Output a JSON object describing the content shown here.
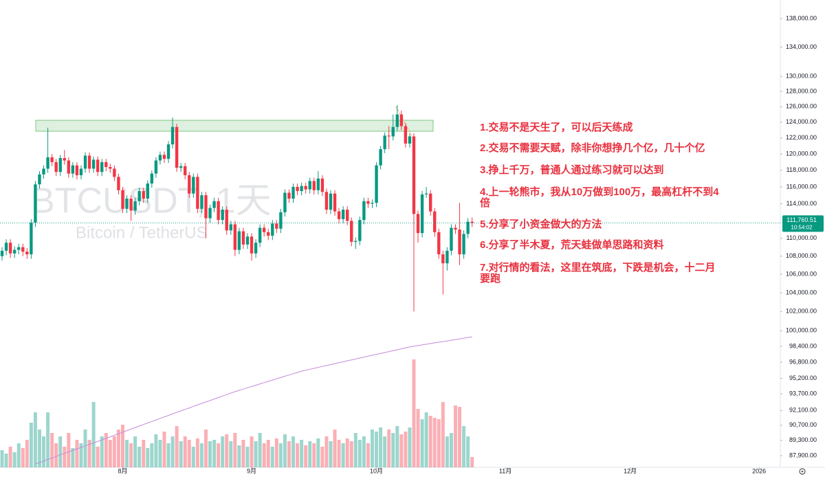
{
  "chart_data": {
    "type": "candlestick",
    "watermark": "BTCUSDT, 1天",
    "watermark_sub": "Bitcoin / TetherUS",
    "log_scale": true,
    "grid": false,
    "up_color": "#089981",
    "down_color": "#f23645",
    "ma_color": "#c58ad9",
    "annotation_color": "#e8313f",
    "last_price_label": "111,760.51",
    "countdown": "10:54:02",
    "xlim": [
      -0.5,
      187.1
    ],
    "xticks": [
      {
        "value": 29,
        "label": "8月"
      },
      {
        "value": 60,
        "label": "9月"
      },
      {
        "value": 90,
        "label": "10月"
      },
      {
        "value": 121,
        "label": "11月"
      },
      {
        "value": 151,
        "label": "12月"
      },
      {
        "value": 182,
        "label": "2026"
      }
    ],
    "ylim": [
      86850,
      140670
    ],
    "yticks": [
      {
        "value": 138000,
        "label": "138,000.00"
      },
      {
        "value": 134000,
        "label": "134,000.00"
      },
      {
        "value": 130000,
        "label": "130,000.00"
      },
      {
        "value": 128000,
        "label": "128,000.00"
      },
      {
        "value": 126000,
        "label": "126,000.00"
      },
      {
        "value": 124000,
        "label": "124,000.00"
      },
      {
        "value": 122000,
        "label": "122,000.00"
      },
      {
        "value": 120000,
        "label": "120,000.00"
      },
      {
        "value": 118000,
        "label": "118,000.00"
      },
      {
        "value": 116000,
        "label": "116,000.00"
      },
      {
        "value": 114000,
        "label": "114,000.00"
      },
      {
        "value": 110000,
        "label": "110,000.00"
      },
      {
        "value": 108000,
        "label": "108,000.00"
      },
      {
        "value": 106000,
        "label": "106,000.00"
      },
      {
        "value": 104000,
        "label": "104,000.00"
      },
      {
        "value": 102000,
        "label": "102,000.00"
      },
      {
        "value": 100000,
        "label": "100,000.00"
      },
      {
        "value": 98400,
        "label": "98,400.00"
      },
      {
        "value": 96800,
        "label": "96,800.00"
      },
      {
        "value": 95200,
        "label": "95,200.00"
      },
      {
        "value": 93700,
        "label": "93,700.00"
      },
      {
        "value": 92100,
        "label": "92,100.00"
      },
      {
        "value": 90700,
        "label": "90,700.00"
      },
      {
        "value": 89300,
        "label": "89,300.00"
      },
      {
        "value": 87900,
        "label": "87,900.00"
      }
    ],
    "annotations": [
      [
        "1.交易不是天生了，可以后天练成"
      ],
      [
        "2.交易不需要天赋，除非你想挣几个亿，几十个亿"
      ],
      [
        "3.挣上千万，普通人通过练习就可以达到"
      ],
      [
        "4.上一轮熊市，我从10万做到100万，最高杠杆不到4",
        "倍"
      ],
      [
        "5.分享了小资金做大的方法"
      ],
      [
        "6.分享了半木夏，荒天蛙做单思路和资料"
      ],
      [
        "7.对行情的看法，这里在筑底，下跌是机会，十二月",
        "要跑"
      ]
    ],
    "open": [
      108000,
      108600,
      109500,
      108300,
      108700,
      109000,
      108500,
      108200,
      111800,
      116300,
      117500,
      118200,
      119600,
      119000,
      117800,
      119500,
      119200,
      117600,
      118600,
      117400,
      118200,
      119800,
      118200,
      119300,
      117800,
      119000,
      118400,
      118200,
      117200,
      115600,
      113400,
      114600,
      113200,
      114300,
      115500,
      114600,
      116400,
      117600,
      119200,
      119900,
      119400,
      121200,
      123400,
      118300,
      118500,
      117400,
      115200,
      117200,
      113400,
      115000,
      112300,
      113500,
      114300,
      112100,
      113300,
      110900,
      111600,
      108700,
      110800,
      109300,
      110200,
      108300,
      109500,
      111200,
      110700,
      110300,
      111700,
      111100,
      113000,
      115300,
      114600,
      116000,
      115500,
      116100,
      115700,
      116700,
      115600,
      117000,
      115400,
      113300,
      115200,
      113100,
      112200,
      113300,
      112000,
      109600,
      109700,
      112100,
      114300,
      114000,
      114100,
      118600,
      120600,
      122300,
      122200,
      123400,
      125000,
      123500,
      121300,
      122200,
      112800,
      110600,
      115100,
      115200,
      113100,
      110700,
      108200,
      107200,
      108600,
      111200,
      111000,
      108200,
      110500,
      111900
    ],
    "high": [
      109000,
      109900,
      109900,
      109100,
      109400,
      109400,
      108900,
      112200,
      116700,
      117900,
      118600,
      123300,
      120000,
      119400,
      119900,
      120500,
      119600,
      119000,
      119000,
      118600,
      120200,
      120200,
      119700,
      119700,
      119400,
      119400,
      118800,
      118600,
      117600,
      116000,
      115000,
      115000,
      114700,
      115900,
      115900,
      116800,
      118000,
      119600,
      120300,
      120300,
      121600,
      124600,
      123800,
      118900,
      118900,
      117800,
      117600,
      117600,
      115400,
      115400,
      113900,
      114700,
      114700,
      113700,
      113700,
      112000,
      112000,
      111200,
      111200,
      110600,
      110600,
      109900,
      111600,
      111600,
      111100,
      112100,
      112100,
      113400,
      115700,
      115700,
      116400,
      116400,
      116500,
      116500,
      117100,
      117100,
      117900,
      117400,
      115800,
      115600,
      115600,
      113500,
      113700,
      113700,
      112400,
      110100,
      112500,
      114700,
      114700,
      114500,
      119000,
      121000,
      122700,
      123500,
      125000,
      126200,
      125500,
      123900,
      122600,
      122600,
      113200,
      115500,
      116000,
      115600,
      113500,
      111100,
      108600,
      109000,
      111600,
      111600,
      114100,
      110900,
      112300,
      112400
    ],
    "low": [
      107500,
      108100,
      107800,
      107800,
      108200,
      108000,
      107700,
      107700,
      111300,
      115800,
      117000,
      117700,
      118500,
      117300,
      117300,
      118700,
      117100,
      117100,
      116900,
      116900,
      117700,
      117700,
      117700,
      117300,
      117300,
      117900,
      117700,
      116700,
      115100,
      112900,
      112900,
      112000,
      112700,
      113800,
      114100,
      114100,
      115900,
      117100,
      118700,
      118900,
      118900,
      120700,
      117800,
      117800,
      116900,
      114700,
      114700,
      112900,
      112900,
      110000,
      111800,
      113000,
      111600,
      111600,
      110400,
      110400,
      108000,
      108200,
      108800,
      108800,
      107500,
      107800,
      109000,
      110200,
      109800,
      109800,
      110600,
      110600,
      112500,
      114100,
      114100,
      115000,
      115000,
      115200,
      115200,
      115100,
      115100,
      114900,
      112800,
      112800,
      112600,
      111700,
      111700,
      111500,
      109100,
      108800,
      109200,
      111600,
      113500,
      113500,
      113600,
      118100,
      120100,
      120600,
      121700,
      122900,
      123000,
      120800,
      120800,
      102000,
      109500,
      110100,
      114700,
      112600,
      110200,
      107700,
      103800,
      106400,
      108100,
      110500,
      107000,
      107700,
      110000,
      111300
    ],
    "close": [
      108600,
      109500,
      108300,
      108700,
      109000,
      108500,
      108200,
      111800,
      116300,
      117500,
      118200,
      119600,
      119000,
      117800,
      119500,
      119200,
      117600,
      118600,
      117400,
      118200,
      119800,
      118200,
      119300,
      117800,
      119000,
      118400,
      118200,
      117200,
      115600,
      113400,
      114600,
      113200,
      114300,
      115500,
      114600,
      116400,
      117600,
      119200,
      119900,
      119400,
      121200,
      123400,
      118300,
      118500,
      117400,
      115200,
      117200,
      113400,
      115000,
      112300,
      113500,
      114300,
      112100,
      113300,
      110900,
      111600,
      108700,
      110800,
      109300,
      110200,
      108300,
      109500,
      111200,
      110700,
      110300,
      111700,
      111100,
      113000,
      115300,
      114600,
      116000,
      115500,
      116100,
      115700,
      116700,
      115600,
      117000,
      115400,
      113300,
      115200,
      113100,
      112200,
      113300,
      112000,
      109600,
      109700,
      112100,
      114300,
      114000,
      114100,
      118600,
      120600,
      122300,
      122200,
      123400,
      125000,
      123500,
      121300,
      122200,
      112800,
      110600,
      115100,
      115200,
      113100,
      110700,
      108200,
      107200,
      108600,
      111200,
      111000,
      108200,
      110500,
      111900,
      111760
    ],
    "volume": [
      5000,
      4000,
      6000,
      4400,
      7000,
      5600,
      8000,
      13000,
      16000,
      11000,
      9000,
      16000,
      10000,
      7000,
      9000,
      6000,
      10000,
      5600,
      8000,
      7000,
      11000,
      8000,
      19000,
      6000,
      9000,
      10000,
      8000,
      9000,
      11000,
      12400,
      8000,
      7000,
      9000,
      6000,
      8000,
      5600,
      7000,
      9600,
      8000,
      10400,
      7000,
      9000,
      12000,
      7600,
      9000,
      8000,
      6000,
      8400,
      7000,
      11000,
      7600,
      8000,
      7000,
      9000,
      9600,
      7600,
      10000,
      6400,
      8000,
      6000,
      9000,
      7600,
      10000,
      7000,
      8000,
      6000,
      8400,
      7000,
      9600,
      7600,
      9000,
      7000,
      8000,
      6400,
      7600,
      7000,
      8400,
      6000,
      9000,
      7600,
      11000,
      8000,
      7000,
      8400,
      7600,
      10000,
      8000,
      9000,
      7000,
      11000,
      10400,
      11600,
      9000,
      11000,
      10000,
      12000,
      9600,
      10400,
      11600,
      31400,
      17000,
      14000,
      16000,
      15000,
      14400,
      14000,
      19000,
      9000,
      10000,
      18000,
      17600,
      12000,
      9000,
      3000
    ],
    "ma": [
      null,
      null,
      null,
      null,
      null,
      null,
      null,
      null,
      87150,
      87290,
      87420,
      87560,
      87700,
      87830,
      87970,
      88110,
      88250,
      88380,
      88520,
      88660,
      88790,
      88930,
      89070,
      89200,
      89340,
      89480,
      89630,
      89770,
      89910,
      90060,
      90200,
      90340,
      90490,
      90630,
      90770,
      90920,
      91060,
      91200,
      91350,
      91490,
      91630,
      91780,
      91920,
      92060,
      92200,
      92340,
      92490,
      92630,
      92770,
      92910,
      93050,
      93190,
      93340,
      93480,
      93620,
      93760,
      93900,
      94030,
      94150,
      94280,
      94400,
      94530,
      94660,
      94780,
      94910,
      95030,
      95160,
      95280,
      95410,
      95530,
      95660,
      95780,
      95910,
      96000,
      96100,
      96190,
      96280,
      96380,
      96470,
      96560,
      96660,
      96750,
      96840,
      96940,
      97030,
      97120,
      97220,
      97310,
      97400,
      97500,
      97590,
      97680,
      97770,
      97870,
      97960,
      98050,
      98150,
      98240,
      98330,
      98400,
      98470,
      98540,
      98610,
      98680,
      98750,
      98820,
      98880,
      98950,
      99020,
      99090,
      99160,
      99230,
      99300,
      99370
    ]
  }
}
